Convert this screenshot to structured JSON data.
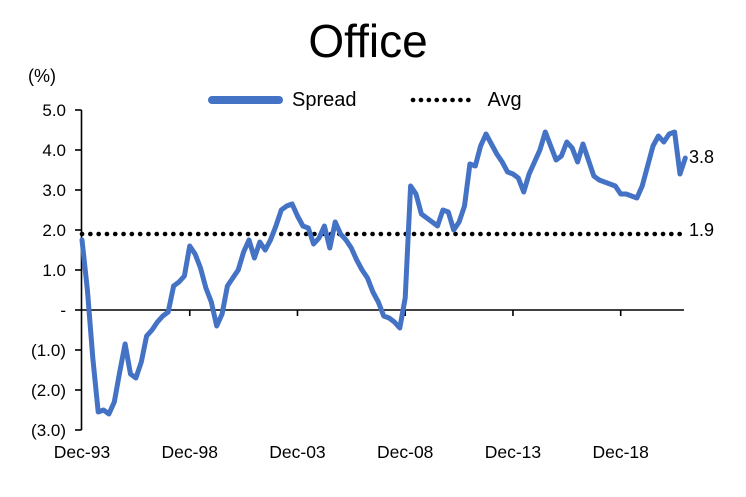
{
  "title": "Office",
  "y_axis": {
    "unit_label": "(%)",
    "tick_labels": [
      "5.0",
      "4.0",
      "3.0",
      "2.0",
      "1.0",
      "-",
      "(1.0)",
      "(2.0)",
      "(3.0)"
    ],
    "tick_values": [
      5,
      4,
      3,
      2,
      1,
      0,
      -1,
      -2,
      -3
    ]
  },
  "x_axis": {
    "tick_labels": [
      "Dec-93",
      "Dec-98",
      "Dec-03",
      "Dec-08",
      "Dec-13",
      "Dec-18"
    ]
  },
  "legend": [
    {
      "label": "Spread",
      "swatch": "line",
      "color": "#4472C4"
    },
    {
      "label": "Avg",
      "swatch": "dotted",
      "color": "#000000"
    }
  ],
  "annotations": {
    "spread_end_label": "3.8",
    "avg_value_label": "1.9"
  },
  "colors": {
    "spread": "#4472C4",
    "avg": "#000000",
    "axis": "#000000",
    "text": "#000000",
    "background": "#ffffff"
  },
  "chart_data": {
    "type": "line",
    "title": "Office",
    "ylabel": "(%)",
    "xlabel": "",
    "grid": false,
    "legend_position": "top",
    "ylim": [
      -3.0,
      5.0
    ],
    "ytick_values": [
      5,
      4,
      3,
      2,
      1,
      0,
      -1,
      -2,
      -3
    ],
    "ytick_labels": [
      "5.0",
      "4.0",
      "3.0",
      "2.0",
      "1.0",
      "-",
      "(1.0)",
      "(2.0)",
      "(3.0)"
    ],
    "xtick_labels": [
      "Dec-93",
      "Dec-98",
      "Dec-03",
      "Dec-08",
      "Dec-13",
      "Dec-18"
    ],
    "x_start": "Dec-93",
    "x_end": "Dec-21",
    "x_frequency": "quarterly",
    "series": [
      {
        "name": "Spread",
        "style": "solid",
        "color": "#4472C4",
        "end_value_label": "3.8",
        "values": [
          1.75,
          0.5,
          -1.2,
          -2.55,
          -2.5,
          -2.6,
          -2.3,
          -1.55,
          -0.85,
          -1.6,
          -1.7,
          -1.3,
          -0.65,
          -0.5,
          -0.3,
          -0.15,
          -0.05,
          0.6,
          0.7,
          0.85,
          1.6,
          1.4,
          1.05,
          0.55,
          0.2,
          -0.4,
          -0.1,
          0.6,
          0.8,
          1.0,
          1.45,
          1.75,
          1.3,
          1.7,
          1.5,
          1.75,
          2.1,
          2.5,
          2.6,
          2.65,
          2.35,
          2.1,
          2.05,
          1.65,
          1.8,
          2.1,
          1.55,
          2.2,
          1.9,
          1.75,
          1.55,
          1.25,
          1.0,
          0.8,
          0.45,
          0.2,
          -0.15,
          -0.2,
          -0.3,
          -0.45,
          0.3,
          3.1,
          2.9,
          2.4,
          2.3,
          2.2,
          2.1,
          2.5,
          2.45,
          2.0,
          2.2,
          2.6,
          3.65,
          3.6,
          4.1,
          4.4,
          4.15,
          3.9,
          3.7,
          3.45,
          3.4,
          3.3,
          2.95,
          3.4,
          3.7,
          4.0,
          4.45,
          4.1,
          3.75,
          3.85,
          4.2,
          4.05,
          3.7,
          4.15,
          3.75,
          3.35,
          3.25,
          3.2,
          3.15,
          3.1,
          2.9,
          2.9,
          2.85,
          2.8,
          3.1,
          3.6,
          4.1,
          4.35,
          4.2,
          4.4,
          4.45,
          3.4,
          3.8
        ]
      },
      {
        "name": "Avg",
        "style": "dotted",
        "color": "#000000",
        "value": 1.9,
        "value_label": "1.9"
      }
    ]
  }
}
